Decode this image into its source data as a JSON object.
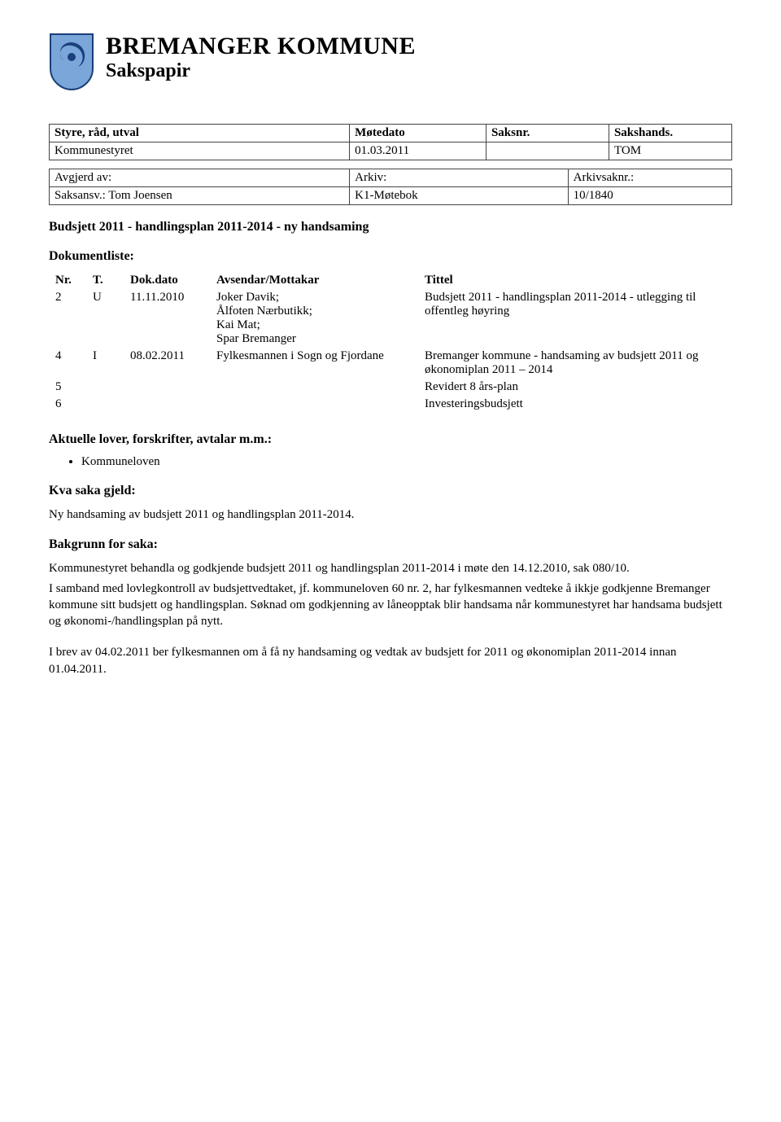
{
  "header": {
    "org": "BREMANGER KOMMUNE",
    "subtitle": "Sakspapir",
    "logo": {
      "shieldFill": "#7aa6d9",
      "shieldStroke": "#1a3f7a",
      "swirlFill": "#1a3f7a"
    }
  },
  "meeting": {
    "headers": [
      "Styre, råd, utval",
      "Møtedato",
      "Saksnr.",
      "Sakshands."
    ],
    "row": [
      "Kommunestyret",
      "01.03.2011",
      "",
      "TOM"
    ],
    "widths": [
      "44%",
      "20%",
      "18%",
      "18%"
    ]
  },
  "meta": {
    "row1": [
      "Avgjerd av:",
      "Arkiv:",
      "Arkivsaknr.:"
    ],
    "row2": [
      "Saksansv.:   Tom Joensen",
      "K1-Møtebok",
      "10/1840"
    ],
    "widths": [
      "44%",
      "32%",
      "24%"
    ]
  },
  "title": "Budsjett 2011 - handlingsplan 2011-2014 - ny handsaming",
  "doclist": {
    "heading": "Dokumentliste:",
    "headers": [
      "Nr.",
      "T.",
      "Dok.dato",
      "Avsendar/Mottakar",
      "Tittel"
    ],
    "rows": [
      {
        "nr": "2",
        "t": "U",
        "date": "11.11.2010",
        "sender": "Joker Davik;\nÅlfoten Nærbutikk;\nKai Mat;\nSpar Bremanger",
        "title": "Budsjett 2011 - handlingsplan 2011-2014 - utlegging til offentleg høyring"
      },
      {
        "nr": "4",
        "t": "I",
        "date": "08.02.2011",
        "sender": "Fylkesmannen i Sogn og Fjordane",
        "title": "Bremanger kommune - handsaming av budsjett 2011 og økonomiplan 2011 – 2014"
      },
      {
        "nr": "5",
        "t": "",
        "date": "",
        "sender": "",
        "title": "Revidert 8 års-plan"
      },
      {
        "nr": "6",
        "t": "",
        "date": "",
        "sender": "",
        "title": "Investeringsbudsjett"
      }
    ]
  },
  "laws": {
    "heading": "Aktuelle lover, forskrifter, avtalar m.m.:",
    "items": [
      "Kommuneloven"
    ]
  },
  "matter": {
    "heading": "Kva saka gjeld:",
    "text": "Ny handsaming av budsjett 2011 og handlingsplan 2011-2014."
  },
  "background": {
    "heading": "Bakgrunn for saka:",
    "p1": "Kommunestyret behandla og godkjende budsjett 2011 og handlingsplan 2011-2014 i møte den 14.12.2010, sak 080/10.",
    "p2": "I samband med lovlegkontroll av budsjettvedtaket, jf. kommuneloven 60 nr. 2, har fylkesmannen vedteke å ikkje godkjenne Bremanger kommune sitt budsjett og handlingsplan. Søknad om godkjenning av låneopptak blir handsama når kommunestyret har handsama budsjett og økonomi-/handlingsplan på nytt.",
    "p3": "I brev av 04.02.2011 ber fylkesmannen om å få ny handsaming og vedtak av budsjett for 2011 og økonomiplan 2011-2014 innan 01.04.2011."
  }
}
